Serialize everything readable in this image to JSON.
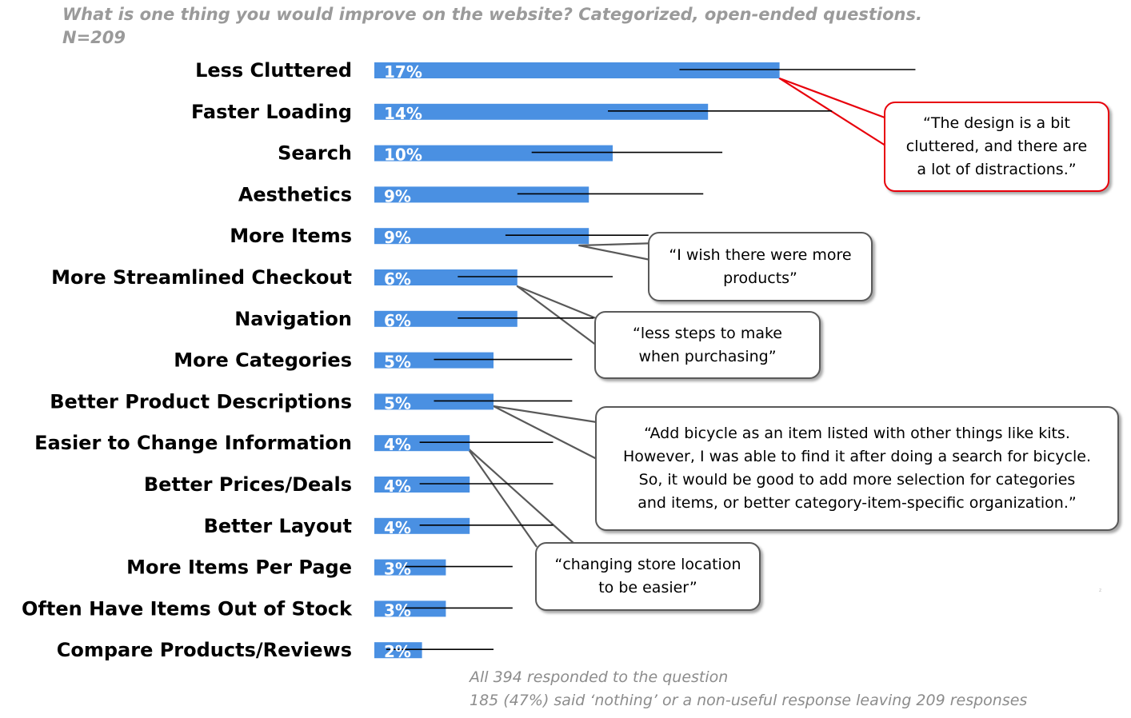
{
  "title_line1": "What is one thing you would improve on the website? Categorized, open-ended questions.",
  "title_line2": "N=209",
  "chart_data": {
    "type": "bar",
    "orientation": "horizontal",
    "unit": "%",
    "bar_color": "#4a90e2",
    "grid": false,
    "categories": [
      "Less Cluttered",
      "Faster Loading",
      "Search",
      "Aesthetics",
      "More Items",
      "More Streamlined Checkout",
      "Navigation",
      "More Categories",
      "Better Product Descriptions",
      "Easier to Change Information",
      "Better Prices/Deals",
      "Better Layout",
      "More Items Per Page",
      "Often Have Items Out of Stock",
      "Compare Products/Reviews"
    ],
    "values": [
      17,
      14,
      10,
      9,
      9,
      6,
      6,
      5,
      5,
      4,
      4,
      4,
      3,
      3,
      2
    ],
    "labels": [
      "17%",
      "14%",
      "10%",
      "9%",
      "9%",
      "6%",
      "6%",
      "5%",
      "5%",
      "4%",
      "4%",
      "4%",
      "3%",
      "3%",
      "2%"
    ],
    "error_ranges": [
      [
        12.8,
        22.7
      ],
      [
        9.8,
        19.2
      ],
      [
        6.6,
        14.6
      ],
      [
        6.0,
        13.8
      ],
      [
        5.5,
        11.5
      ],
      [
        3.5,
        10.0
      ],
      [
        3.5,
        9.2
      ],
      [
        2.5,
        8.3
      ],
      [
        2.5,
        8.3
      ],
      [
        1.9,
        7.5
      ],
      [
        1.9,
        7.5
      ],
      [
        1.9,
        7.5
      ],
      [
        1.2,
        5.8
      ],
      [
        1.2,
        5.8
      ],
      [
        0.5,
        5.0
      ]
    ]
  },
  "callouts": {
    "clutter": "“The design is a bit\ncluttered, and there are\na lot of distractions.”",
    "more_items": "“I wish there were more\nproducts”",
    "steps": "“less steps to make\nwhen purchasing”",
    "bicycle": "“Add bicycle as an item listed with other things like kits.\nHowever, I was able to find it after doing a search for bicycle.\nSo, it would be good to add more selection for categories\nand items, or better category-item-specific organization.”",
    "store": "“changing store location\nto be easier”"
  },
  "footnote_line1": "All 394 responded to the question",
  "footnote_line2": "185 (47%) said ‘nothing’ or a non-useful response leaving 209 responses",
  "colors": {
    "callout_accent": "#e8000b",
    "callout_border": "#595959",
    "title_gray": "#9a9a9a"
  }
}
